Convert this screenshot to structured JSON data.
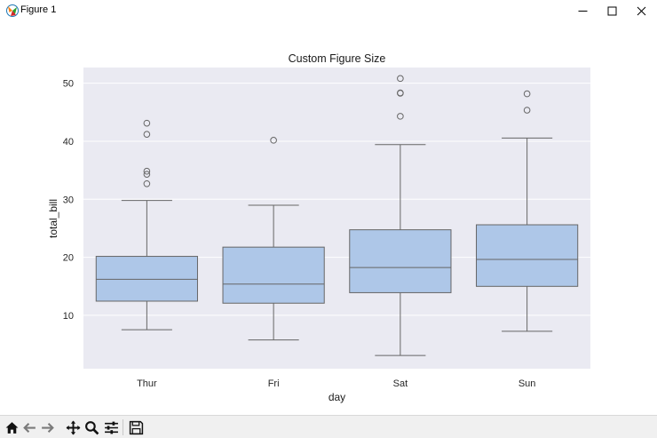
{
  "window": {
    "title": "Figure 1",
    "icons": {
      "app": "matplotlib-figure-icon",
      "minimize": "minimize-icon",
      "maximize": "maximize-icon",
      "close": "close-icon"
    }
  },
  "toolbar": {
    "buttons": [
      "home-icon",
      "back-arrow-icon",
      "forward-arrow-icon",
      "pan-move-icon",
      "zoom-magnifier-icon",
      "configure-subplots-icon",
      "save-disk-icon"
    ]
  },
  "chart_data": {
    "type": "box",
    "title": "Custom Figure Size",
    "xlabel": "day",
    "ylabel": "total_bill",
    "categories": [
      "Thur",
      "Fri",
      "Sat",
      "Sun"
    ],
    "ylim": [
      0.8,
      52.7
    ],
    "yticks": [
      10,
      20,
      30,
      40,
      50
    ],
    "grid": true,
    "colors": {
      "face": "#aec7e8",
      "edge": "#666666",
      "background": "#eaeaf2",
      "grid": "#ffffff"
    },
    "boxes": [
      {
        "category": "Thur",
        "whisker_low": 7.51,
        "q1": 12.44,
        "median": 16.2,
        "q3": 20.16,
        "whisker_high": 29.8,
        "outliers": [
          32.68,
          34.3,
          34.83,
          41.19,
          43.11
        ]
      },
      {
        "category": "Fri",
        "whisker_low": 5.75,
        "q1": 12.09,
        "median": 15.38,
        "q3": 21.75,
        "whisker_high": 28.97,
        "outliers": [
          40.17
        ]
      },
      {
        "category": "Sat",
        "whisker_low": 3.07,
        "q1": 13.9,
        "median": 18.24,
        "q3": 24.74,
        "whisker_high": 39.42,
        "outliers": [
          44.3,
          48.27,
          48.33,
          50.81
        ]
      },
      {
        "category": "Sun",
        "whisker_low": 7.25,
        "q1": 14.99,
        "median": 19.63,
        "q3": 25.6,
        "whisker_high": 40.55,
        "outliers": [
          45.35,
          48.17
        ]
      }
    ]
  }
}
